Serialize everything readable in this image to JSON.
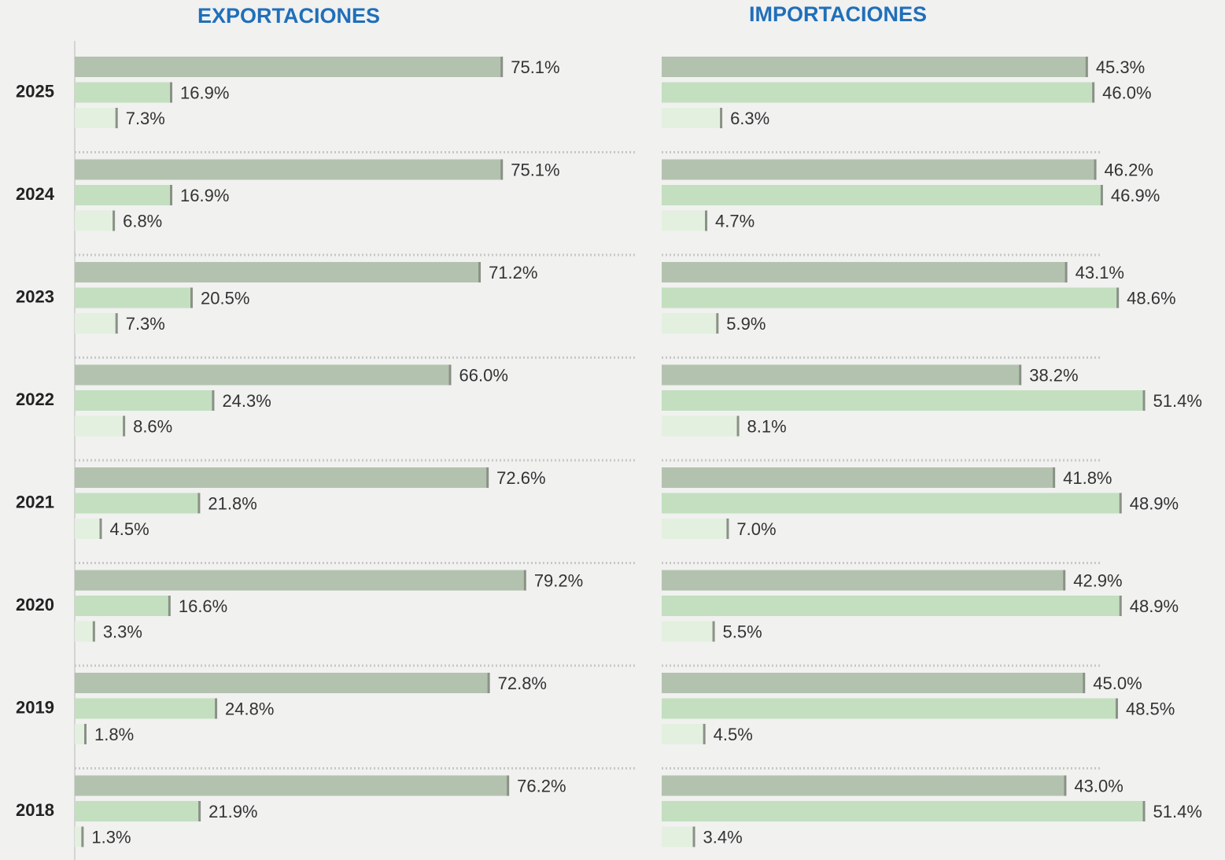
{
  "chart_data": [
    {
      "type": "bar",
      "orientation": "horizontal",
      "title": "EXPORTACIONES",
      "categories": [
        "2025",
        "2024",
        "2023",
        "2022",
        "2021",
        "2020",
        "2019",
        "2018"
      ],
      "xlim": [
        0,
        100
      ],
      "series": [
        {
          "color": "#b3c2ae",
          "values": [
            75.1,
            75.1,
            71.2,
            66.0,
            72.6,
            79.2,
            72.8,
            76.2
          ],
          "value_labels": [
            "75.1%",
            "75.1%",
            "71.2%",
            "66.0%",
            "72.6%",
            "79.2%",
            "72.8%",
            "76.2%"
          ]
        },
        {
          "color": "#c3dfc0",
          "values": [
            16.9,
            16.9,
            20.5,
            24.3,
            21.8,
            16.6,
            24.8,
            21.9
          ],
          "value_labels": [
            "16.9%",
            "16.9%",
            "20.5%",
            "24.3%",
            "21.8%",
            "16.6%",
            "24.8%",
            "21.9%"
          ]
        },
        {
          "color": "#e3f0df",
          "values": [
            7.3,
            6.8,
            7.3,
            8.6,
            4.5,
            3.3,
            1.8,
            1.3
          ],
          "value_labels": [
            "7.3%",
            "6.8%",
            "7.3%",
            "8.6%",
            "4.5%",
            "3.3%",
            "1.8%",
            "1.3%"
          ]
        }
      ]
    },
    {
      "type": "bar",
      "orientation": "horizontal",
      "title": "IMPORTACIONES",
      "xlim": [
        0,
        60
      ],
      "series": [
        {
          "color": "#b3c2ae",
          "values": [
            45.3,
            46.2,
            43.1,
            38.2,
            41.8,
            42.9,
            45.0,
            43.0
          ],
          "value_labels": [
            "45.3%",
            "46.2%",
            "43.1%",
            "38.2%",
            "41.8%",
            "42.9%",
            "45.0%",
            "43.0%"
          ]
        },
        {
          "color": "#c3dfc0",
          "values": [
            46.0,
            46.9,
            48.6,
            51.4,
            48.9,
            48.9,
            48.5,
            51.4
          ],
          "value_labels": [
            "46.0%",
            "46.9%",
            "48.6%",
            "51.4%",
            "48.9%",
            "48.9%",
            "48.5%",
            "51.4%"
          ]
        },
        {
          "color": "#e3f0df",
          "values": [
            6.3,
            4.7,
            5.9,
            8.1,
            7.0,
            5.5,
            4.5,
            3.4
          ],
          "value_labels": [
            "6.3%",
            "4.7%",
            "5.9%",
            "8.1%",
            "7.0%",
            "5.5%",
            "4.5%",
            "3.4%"
          ]
        }
      ]
    }
  ]
}
